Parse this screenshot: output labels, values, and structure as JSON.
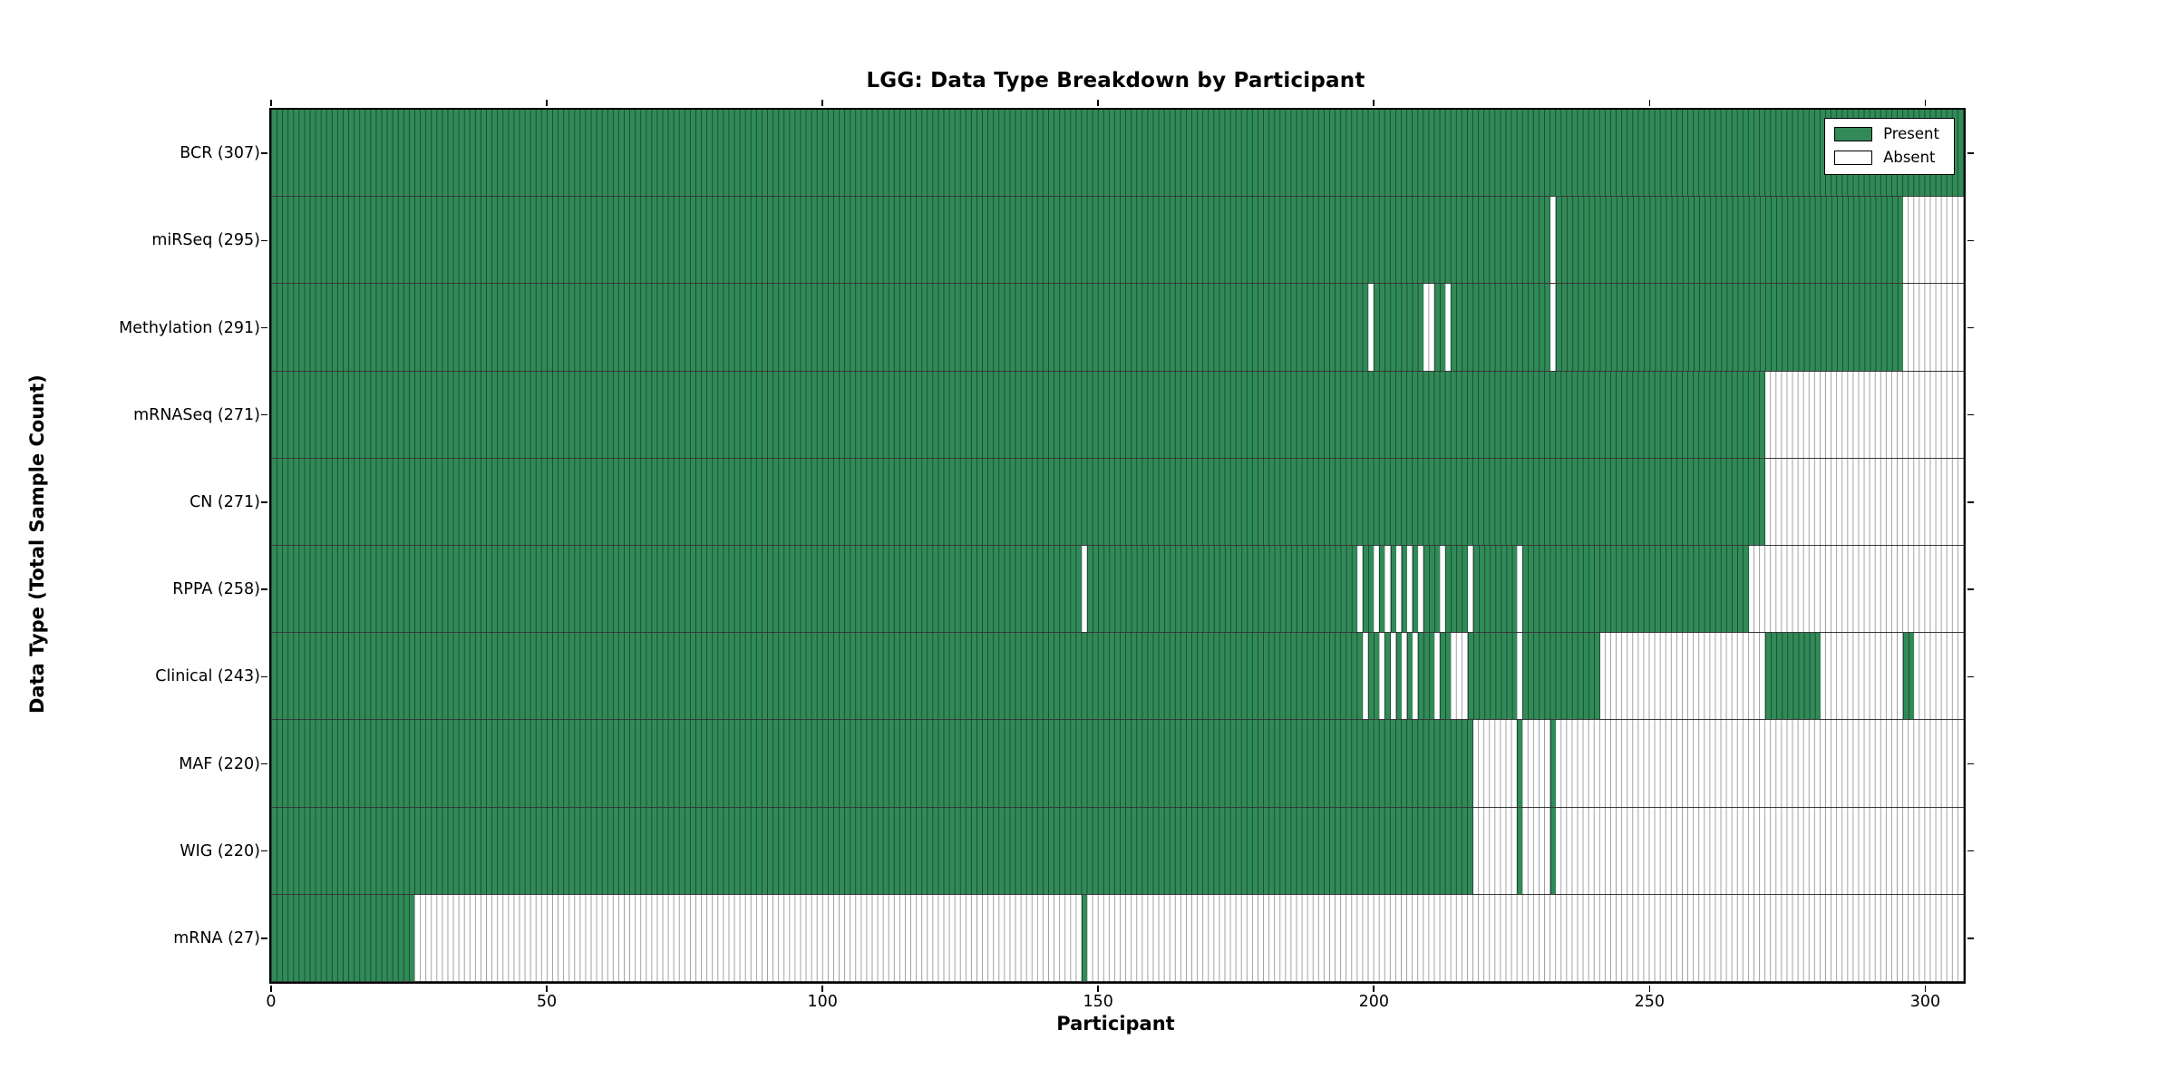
{
  "chart_data": {
    "type": "heatmap",
    "title": "LGG: Data Type Breakdown by Participant",
    "xlabel": "Participant",
    "ylabel": "Data Type (Total Sample Count)",
    "xlim": [
      0,
      307
    ],
    "n_participants": 307,
    "x_ticks": [
      0,
      50,
      100,
      150,
      200,
      250,
      300
    ],
    "grid": false,
    "legend_position": "upper right",
    "colors": {
      "present": "#318a58",
      "absent": "#ffffff",
      "present_cell_edge": "rgba(0,18,8,0.5)",
      "absent_cell_edge": "rgba(0,0,0,0.38)",
      "row_separator": "#1a1a1a"
    },
    "legend": [
      {
        "label": "Present",
        "color": "#318a58"
      },
      {
        "label": "Absent",
        "color": "#ffffff"
      }
    ],
    "rows": [
      {
        "label": "BCR (307)",
        "name": "BCR",
        "total": 307,
        "present_ranges": [
          [
            0,
            307
          ]
        ]
      },
      {
        "label": "miRSeq (295)",
        "name": "miRSeq",
        "total": 295,
        "present_ranges": [
          [
            0,
            232
          ],
          [
            233,
            296
          ]
        ]
      },
      {
        "label": "Methylation (291)",
        "name": "Methylation",
        "total": 291,
        "present_ranges": [
          [
            0,
            199
          ],
          [
            200,
            209
          ],
          [
            211,
            213
          ],
          [
            214,
            232
          ],
          [
            233,
            296
          ]
        ]
      },
      {
        "label": "mRNASeq (271)",
        "name": "mRNASeq",
        "total": 271,
        "present_ranges": [
          [
            0,
            271
          ]
        ]
      },
      {
        "label": "CN (271)",
        "name": "CN",
        "total": 271,
        "present_ranges": [
          [
            0,
            271
          ]
        ]
      },
      {
        "label": "RPPA (258)",
        "name": "RPPA",
        "total": 258,
        "present_ranges": [
          [
            0,
            147
          ],
          [
            148,
            197
          ],
          [
            198,
            200
          ],
          [
            201,
            202
          ],
          [
            203,
            204
          ],
          [
            205,
            206
          ],
          [
            207,
            208
          ],
          [
            209,
            212
          ],
          [
            213,
            217
          ],
          [
            218,
            226
          ],
          [
            227,
            268
          ]
        ]
      },
      {
        "label": "Clinical (243)",
        "name": "Clinical",
        "total": 243,
        "present_ranges": [
          [
            0,
            198
          ],
          [
            199,
            201
          ],
          [
            202,
            203
          ],
          [
            204,
            205
          ],
          [
            206,
            207
          ],
          [
            208,
            211
          ],
          [
            212,
            214
          ],
          [
            217,
            226
          ],
          [
            227,
            241
          ],
          [
            271,
            281
          ],
          [
            296,
            298
          ]
        ]
      },
      {
        "label": "MAF (220)",
        "name": "MAF",
        "total": 220,
        "present_ranges": [
          [
            0,
            218
          ],
          [
            226,
            227
          ],
          [
            232,
            233
          ]
        ]
      },
      {
        "label": "WIG (220)",
        "name": "WIG",
        "total": 220,
        "present_ranges": [
          [
            0,
            218
          ],
          [
            226,
            227
          ],
          [
            232,
            233
          ]
        ]
      },
      {
        "label": "mRNA (27)",
        "name": "mRNA",
        "total": 27,
        "present_ranges": [
          [
            0,
            26
          ],
          [
            147,
            148
          ]
        ]
      }
    ]
  }
}
